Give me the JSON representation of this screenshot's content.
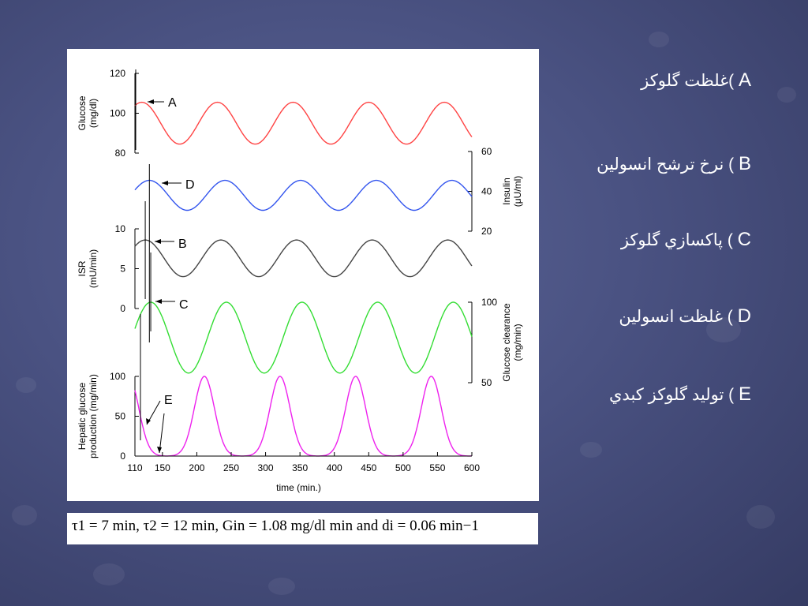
{
  "chart_data": {
    "type": "line",
    "xlabel": "time (min.)",
    "x_ticks": [
      "110",
      "150",
      "200",
      "250",
      "300",
      "350",
      "400",
      "450",
      "500",
      "550",
      "600"
    ],
    "xlim": [
      110,
      600
    ],
    "panels": [
      {
        "key": "glucose",
        "ylabel_lines": [
          "Glucose",
          "(mg/dl)"
        ],
        "axis_side": "left",
        "ylim": [
          80,
          120
        ],
        "ticks": [
          "80",
          "100",
          "120"
        ],
        "color": "#ff4444",
        "series": {
          "name": "Glucose",
          "period": 110,
          "mean": 95,
          "amplitude": 10.5,
          "peak_x": 120
        }
      },
      {
        "key": "insulin",
        "ylabel_lines": [
          "Insulin",
          "(μU/ml)"
        ],
        "axis_side": "right",
        "ylim": [
          20,
          60
        ],
        "ticks": [
          "20",
          "40",
          "60"
        ],
        "color": "#3355ee",
        "series": {
          "name": "Insulin",
          "period": 110,
          "mean": 38,
          "amplitude": 7.5,
          "peak_x": 131
        }
      },
      {
        "key": "isr",
        "ylabel_lines": [
          "ISR",
          "(mU/min)"
        ],
        "axis_side": "left",
        "ylim": [
          0,
          10
        ],
        "ticks": [
          "0",
          "5",
          "10"
        ],
        "color": "#444444",
        "series": {
          "name": "ISR",
          "period": 110,
          "mean": 6.3,
          "amplitude": 2.3,
          "peak_x": 125
        }
      },
      {
        "key": "clearance",
        "ylabel_lines": [
          "Glucose clearance",
          "(mg/min)"
        ],
        "axis_side": "right",
        "ylim": [
          50,
          100
        ],
        "ticks": [
          "50",
          "100"
        ],
        "color": "#33dd33",
        "series": {
          "name": "Glucose clearance",
          "period": 110,
          "mean": 78,
          "amplitude": 22,
          "peak_x": 133
        }
      },
      {
        "key": "hgp",
        "ylabel_lines": [
          "Hepatic glucose",
          "production (mg/min)"
        ],
        "axis_side": "left",
        "ylim": [
          0,
          100
        ],
        "ticks": [
          "0",
          "50",
          "100"
        ],
        "color": "#ee22ee",
        "series": {
          "name": "Hepatic glucose production",
          "period": 110,
          "peak_x": 211,
          "peak_value": 100,
          "pulse_width": 14.5
        }
      }
    ],
    "annotations": [
      {
        "label": "A",
        "target_panel": "glucose",
        "x": 118
      },
      {
        "label": "D",
        "target_panel": "insulin",
        "x": 131
      },
      {
        "label": "B",
        "target_panel": "isr",
        "x": 125
      },
      {
        "label": "C",
        "target_panel": "clearance",
        "x": 133
      },
      {
        "label": "E",
        "target_panel": "hgp",
        "x": 137
      }
    ]
  },
  "formula": {
    "text": "τ1 = 7 min,  τ2 = 12 min,  Gin = 1.08 mg/dl min and di = 0.06 min−1"
  },
  "legend": [
    {
      "letter": "A",
      "text": ")غلظت گلوکز"
    },
    {
      "letter": "B",
      "text": ") نرخ ترشح انسولين"
    },
    {
      "letter": "C",
      "text": ") پاکسازي گلوکز"
    },
    {
      "letter": "D",
      "text": ") غلظت انسولين"
    },
    {
      "letter": "E",
      "text": ") توليد گلوکز کبدي"
    }
  ]
}
